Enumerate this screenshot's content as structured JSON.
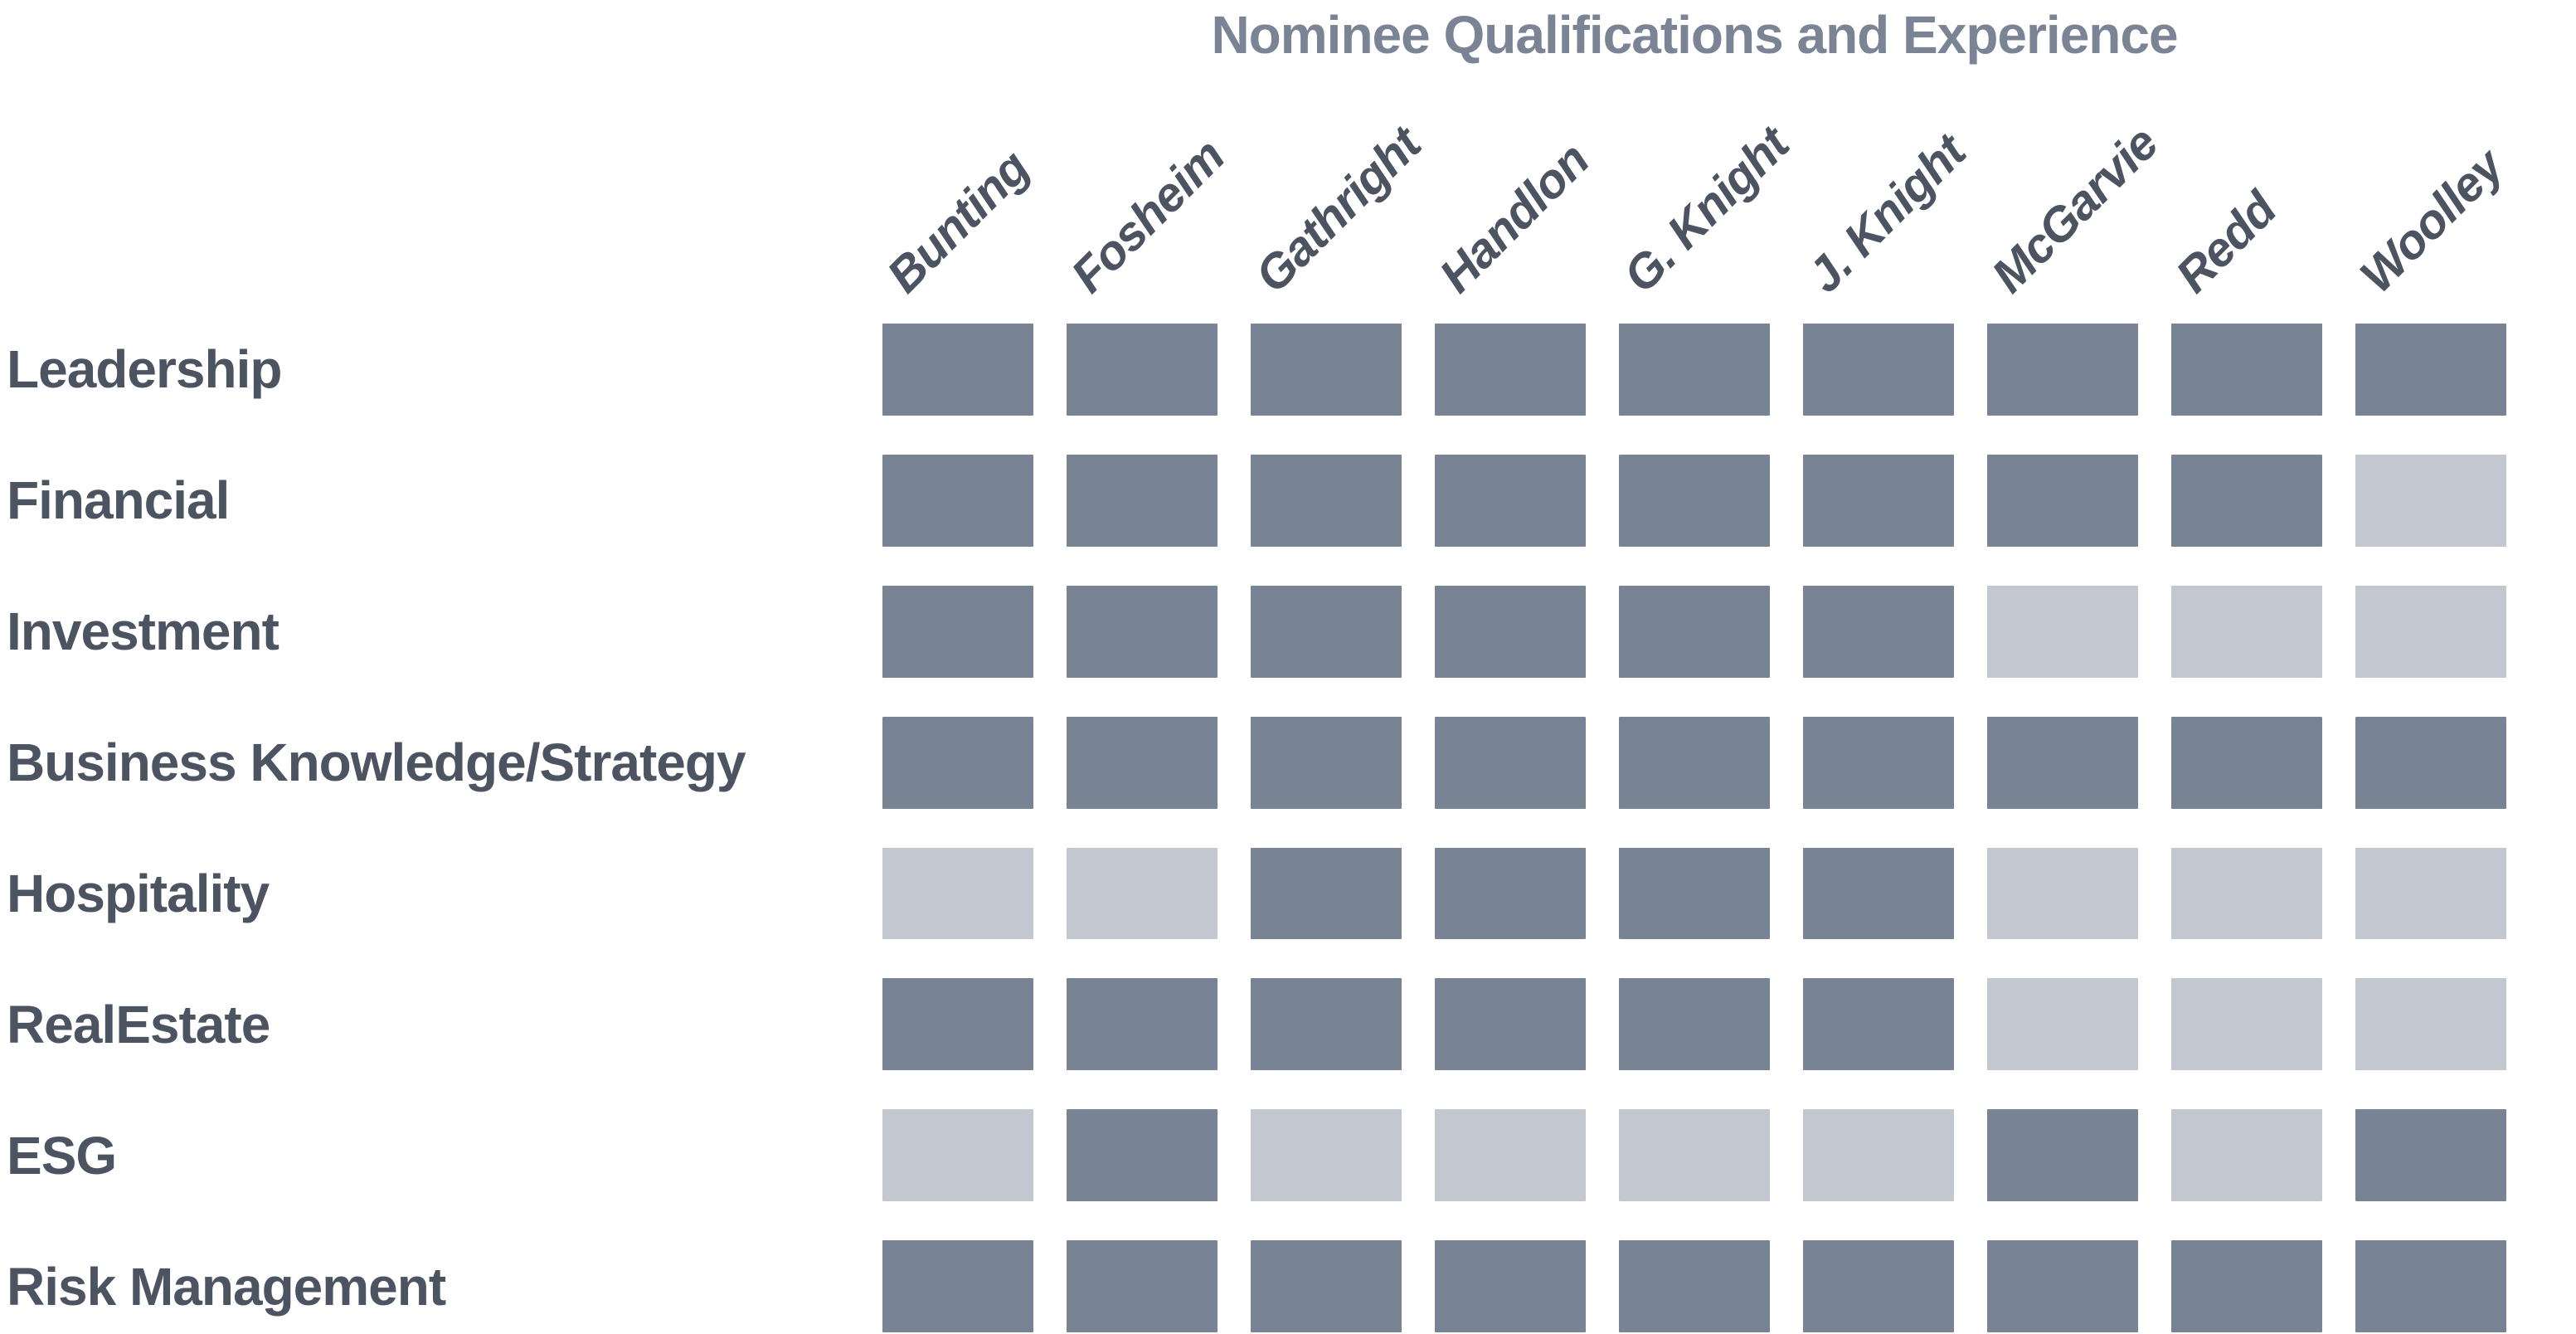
{
  "title": "Nominee Qualifications and Experience",
  "colors": {
    "filled_cell": "#788494",
    "empty_cell": "#C3C7CF",
    "title_text": "#7B8494",
    "label_text": "#4D5461",
    "background": "#ffffff"
  },
  "chart_data": {
    "type": "heatmap",
    "title": "Nominee Qualifications and Experience",
    "columns": [
      "Bunting",
      "Fosheim",
      "Gathright",
      "Handlon",
      "G. Knight",
      "J. Knight",
      "McGarvie",
      "Redd",
      "Woolley"
    ],
    "rows": [
      "Leadership",
      "Financial",
      "Investment",
      "Business Knowledge/Strategy",
      "Hospitality",
      "RealEstate",
      "ESG",
      "Risk Management"
    ],
    "values": [
      [
        1,
        1,
        1,
        1,
        1,
        1,
        1,
        1,
        1
      ],
      [
        1,
        1,
        1,
        1,
        1,
        1,
        1,
        1,
        0
      ],
      [
        1,
        1,
        1,
        1,
        1,
        1,
        0,
        0,
        0
      ],
      [
        1,
        1,
        1,
        1,
        1,
        1,
        1,
        1,
        1
      ],
      [
        0,
        0,
        1,
        1,
        1,
        1,
        0,
        0,
        0
      ],
      [
        1,
        1,
        1,
        1,
        1,
        1,
        0,
        0,
        0
      ],
      [
        0,
        1,
        0,
        0,
        0,
        0,
        1,
        0,
        1
      ],
      [
        1,
        1,
        1,
        1,
        1,
        1,
        1,
        1,
        1
      ]
    ],
    "cell_encoding": {
      "1": "filled (dark = has qualification/experience)",
      "0": "empty (light = does not)"
    },
    "legend_position": "none",
    "grid": false
  }
}
